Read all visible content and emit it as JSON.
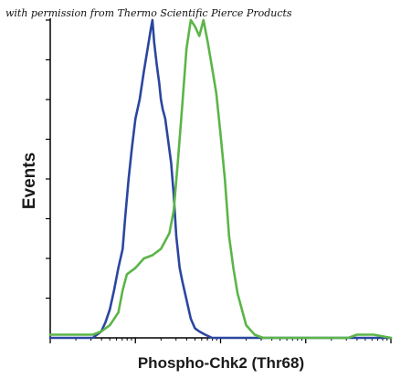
{
  "credit_text": "with permission from Thermo Scientific Pierce Products",
  "chart_data": {
    "type": "line",
    "title": "",
    "xlabel": "Phospho-Chk2 (Thr68)",
    "ylabel": "Events",
    "x_scale": "log",
    "x_decades": [
      0,
      1,
      2,
      3,
      4
    ],
    "xlim": [
      0,
      4
    ],
    "ylim": [
      0,
      100
    ],
    "grid": false,
    "legend": "none",
    "series": [
      {
        "color": "#2B46A0",
        "x": [
          0.0,
          0.5,
          0.6,
          0.65,
          0.7,
          0.75,
          0.8,
          0.85,
          0.88,
          0.92,
          0.96,
          1.0,
          1.05,
          1.1,
          1.15,
          1.18,
          1.2,
          1.22,
          1.25,
          1.28,
          1.3,
          1.32,
          1.35,
          1.38,
          1.42,
          1.45,
          1.48,
          1.52,
          1.55,
          1.6,
          1.65,
          1.7,
          1.75,
          1.82,
          1.9,
          2.0,
          4.0
        ],
        "y": [
          0,
          0,
          2,
          5,
          9,
          15,
          22,
          28,
          38,
          50,
          60,
          69,
          75,
          84,
          92,
          97,
          100,
          93,
          86,
          80,
          75,
          72,
          69,
          63,
          55,
          45,
          32,
          22,
          18,
          12,
          6,
          3,
          2,
          1,
          0,
          0,
          0
        ]
      },
      {
        "color": "#5BB548",
        "x": [
          0.0,
          0.5,
          0.6,
          0.7,
          0.8,
          0.85,
          0.9,
          1.0,
          1.1,
          1.2,
          1.3,
          1.4,
          1.45,
          1.5,
          1.55,
          1.6,
          1.65,
          1.7,
          1.75,
          1.8,
          1.85,
          1.9,
          1.95,
          2.0,
          2.05,
          2.1,
          2.15,
          2.2,
          2.3,
          2.4,
          2.5,
          3.5,
          3.6,
          3.8,
          4.0
        ],
        "y": [
          1,
          1,
          2,
          4,
          8,
          15,
          20,
          22,
          25,
          26,
          28,
          33,
          40,
          56,
          73,
          91,
          100,
          98,
          95,
          100,
          93,
          85,
          77,
          64,
          50,
          32,
          22,
          14,
          4,
          1,
          0,
          0,
          1,
          1,
          0
        ]
      }
    ]
  }
}
